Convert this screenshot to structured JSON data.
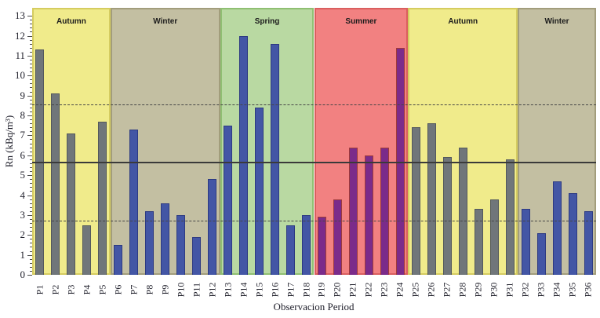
{
  "chart_data": {
    "type": "bar",
    "title": "",
    "xlabel": "Observacion Period",
    "ylabel": "Rn (kBq/m³)",
    "ylim": [
      0,
      13
    ],
    "yticks": [
      0,
      1,
      2,
      3,
      4,
      5,
      6,
      7,
      8,
      9,
      10,
      11,
      12,
      13
    ],
    "grid": false,
    "legend_position": "none",
    "categories": [
      "P1",
      "P2",
      "P3",
      "P4",
      "P5",
      "P6",
      "P7",
      "P8",
      "P9",
      "P10",
      "P11",
      "P12",
      "P13",
      "P14",
      "P15",
      "P16",
      "P17",
      "P18",
      "P19",
      "P20",
      "P21",
      "P22",
      "P23",
      "P24",
      "P25",
      "P26",
      "P27",
      "P28",
      "P29",
      "P30",
      "P31",
      "P32",
      "P33",
      "P34",
      "P35",
      "P36"
    ],
    "values": [
      11.3,
      9.1,
      7.1,
      2.5,
      7.7,
      1.5,
      7.3,
      3.2,
      3.6,
      3.0,
      1.9,
      4.8,
      7.5,
      12.0,
      8.4,
      11.6,
      2.5,
      3.0,
      2.9,
      3.8,
      6.4,
      6.0,
      6.4,
      11.4,
      7.4,
      7.6,
      5.9,
      6.4,
      3.3,
      3.8,
      5.8,
      3.3,
      2.1,
      4.7,
      4.1,
      3.2
    ],
    "season_bands": [
      {
        "label": "Autumn",
        "count": 5,
        "band_color": "#f0eb8b",
        "band_border": "#d5cc60",
        "bar_color": "#70767a",
        "bar_border": "#53585c"
      },
      {
        "label": "Winter",
        "count": 7,
        "band_color": "#c3bfa2",
        "band_border": "#a29d7c",
        "bar_color": "#4356a5",
        "bar_border": "#2d3a82"
      },
      {
        "label": "Spring",
        "count": 6,
        "band_color": "#b9d9a2",
        "band_border": "#8fbf72",
        "bar_color": "#4356a5",
        "bar_border": "#2d3a82"
      },
      {
        "label": "Summer",
        "count": 6,
        "band_color": "#f28181",
        "band_border": "#da5f5f",
        "bar_color": "#7b2b8a",
        "bar_border": "#9e3a3a"
      },
      {
        "label": "Autumn",
        "count": 7,
        "band_color": "#f0eb8b",
        "band_border": "#d5cc60",
        "bar_color": "#70767a",
        "bar_border": "#53585c"
      },
      {
        "label": "Winter",
        "count": 5,
        "band_color": "#c3bfa2",
        "band_border": "#a29d7c",
        "bar_color": "#4356a5",
        "bar_border": "#2d3a82"
      }
    ],
    "reference_lines": [
      {
        "value": 8.5,
        "style": "dashed"
      },
      {
        "value": 5.6,
        "style": "solid"
      },
      {
        "value": 2.7,
        "style": "dashed"
      }
    ]
  }
}
